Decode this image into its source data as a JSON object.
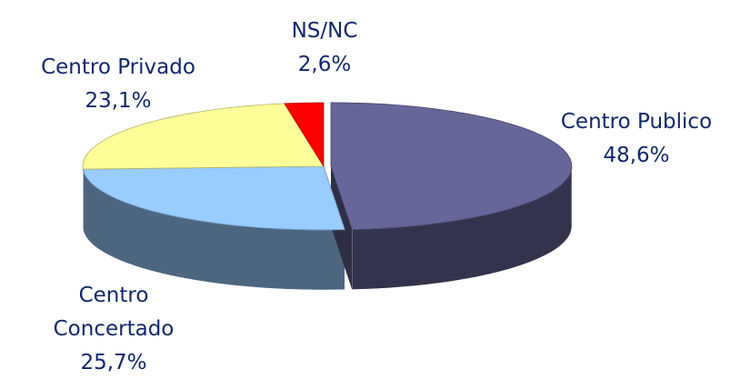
{
  "chart_data": {
    "type": "pie3d",
    "categories": [
      "Centro Publico",
      "Centro Concertado",
      "Centro Privado",
      "NS/NC"
    ],
    "values": [
      48.6,
      25.7,
      23.1,
      2.6
    ],
    "value_labels": [
      "48,6%",
      "25,7%",
      "23,1%",
      "2,6%"
    ],
    "colors": [
      "#666699",
      "#99ccff",
      "#ffff99",
      "#ff0000"
    ]
  }
}
